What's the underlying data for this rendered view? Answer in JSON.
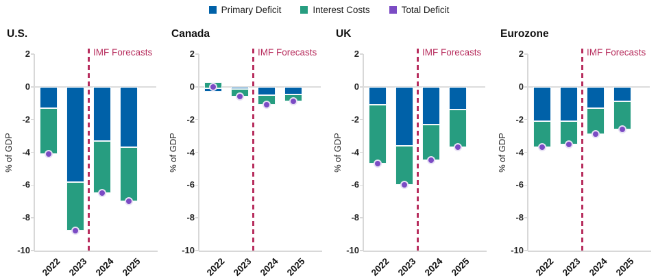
{
  "legend": [
    {
      "label": "Primary Deficit",
      "color": "#0061a8"
    },
    {
      "label": "Interest Costs",
      "color": "#279d80"
    },
    {
      "label": "Total Deficit",
      "color": "#7b4bc4"
    }
  ],
  "forecast_label": "IMF Forecasts",
  "forecast_color": "#b72d5d",
  "ylabel": "% of GDP",
  "yticks": [
    2,
    0,
    -2,
    -4,
    -6,
    -8,
    -10
  ],
  "years": [
    "2022",
    "2023",
    "2024",
    "2025"
  ],
  "chart_data": {
    "type": "bar",
    "subtype": "stacked-bars-with-total-markers",
    "unit": "% of GDP",
    "x": [
      "2022",
      "2023",
      "2024",
      "2025"
    ],
    "ylim": [
      2,
      -10
    ],
    "grid": "zero-line-only",
    "legend_position": "top-center",
    "forecast_divider_between": [
      "2023",
      "2024"
    ],
    "panels": [
      {
        "name": "U.S.",
        "bars": [
          {
            "year": "2022",
            "primary": [
              0,
              -1.3
            ],
            "interest": [
              -1.3,
              -4.1
            ],
            "total": -4.1
          },
          {
            "year": "2023",
            "primary": [
              0,
              -5.8
            ],
            "interest": [
              -5.8,
              -8.8
            ],
            "total": -8.8
          },
          {
            "year": "2024",
            "primary": [
              0,
              -3.3
            ],
            "interest": [
              -3.3,
              -6.5
            ],
            "total": -6.5
          },
          {
            "year": "2025",
            "primary": [
              0,
              -3.7
            ],
            "interest": [
              -3.7,
              -7.0
            ],
            "total": -7.0
          }
        ]
      },
      {
        "name": "Canada",
        "bars": [
          {
            "year": "2022",
            "primary": [
              -0.1,
              -0.3
            ],
            "interest": [
              0.3,
              -0.1
            ],
            "total": 0.0
          },
          {
            "year": "2023",
            "primary": [
              0,
              -0.15
            ],
            "interest": [
              -0.15,
              -0.6
            ],
            "total": -0.6
          },
          {
            "year": "2024",
            "primary": [
              0,
              -0.5
            ],
            "interest": [
              -0.5,
              -1.1
            ],
            "total": -1.1
          },
          {
            "year": "2025",
            "primary": [
              0,
              -0.45
            ],
            "interest": [
              -0.45,
              -0.9
            ],
            "total": -0.9
          }
        ]
      },
      {
        "name": "UK",
        "bars": [
          {
            "year": "2022",
            "primary": [
              0,
              -1.1
            ],
            "interest": [
              -1.1,
              -4.7
            ],
            "total": -4.7
          },
          {
            "year": "2023",
            "primary": [
              0,
              -3.6
            ],
            "interest": [
              -3.6,
              -6.0
            ],
            "total": -6.0
          },
          {
            "year": "2024",
            "primary": [
              0,
              -2.3
            ],
            "interest": [
              -2.3,
              -4.5
            ],
            "total": -4.5
          },
          {
            "year": "2025",
            "primary": [
              0,
              -1.4
            ],
            "interest": [
              -1.4,
              -3.7
            ],
            "total": -3.7
          }
        ]
      },
      {
        "name": "Eurozone",
        "bars": [
          {
            "year": "2022",
            "primary": [
              0,
              -2.1
            ],
            "interest": [
              -2.1,
              -3.7
            ],
            "total": -3.7
          },
          {
            "year": "2023",
            "primary": [
              0,
              -2.1
            ],
            "interest": [
              -2.1,
              -3.5
            ],
            "total": -3.5
          },
          {
            "year": "2024",
            "primary": [
              0,
              -1.3
            ],
            "interest": [
              -1.3,
              -2.9
            ],
            "total": -2.9
          },
          {
            "year": "2025",
            "primary": [
              0,
              -0.9
            ],
            "interest": [
              -0.9,
              -2.6
            ],
            "total": -2.6
          }
        ]
      }
    ]
  }
}
